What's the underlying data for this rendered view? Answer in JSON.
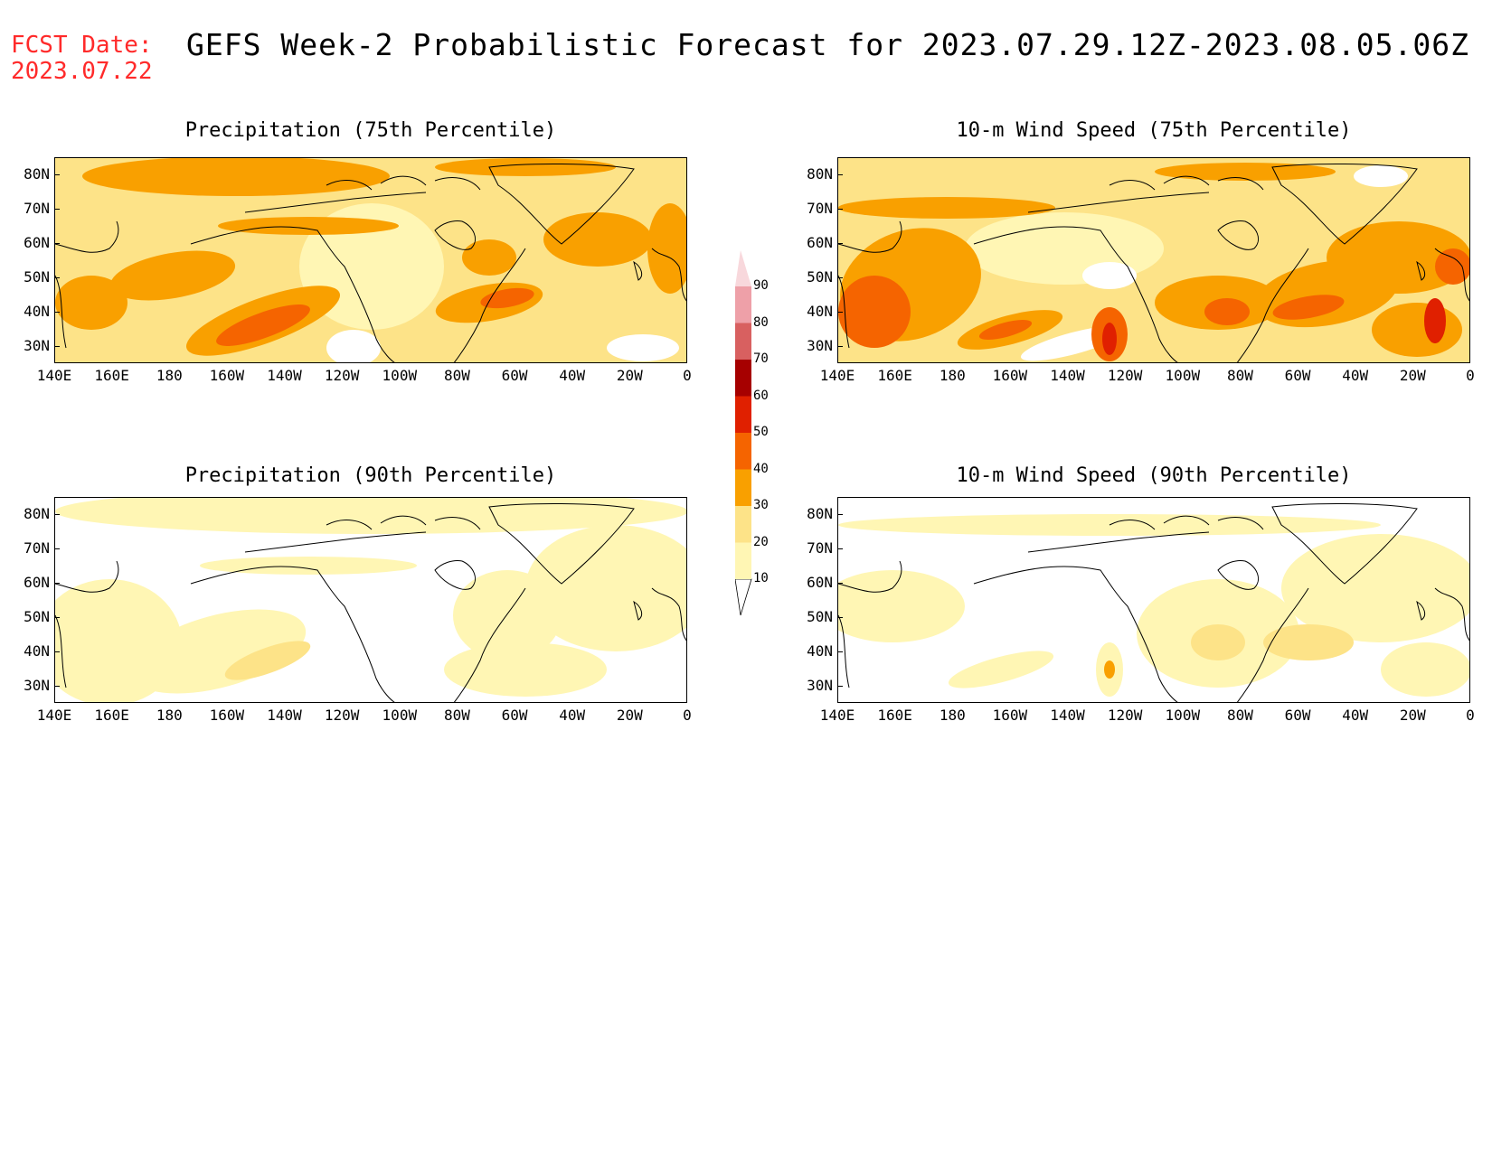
{
  "header": {
    "fcst_label": "FCST Date:",
    "fcst_date": "2023.07.22",
    "title": "GEFS Week-2 Probabilistic Forecast for 2023.07.29.12Z-2023.08.05.06Z"
  },
  "lat_ticks": [
    "80N",
    "70N",
    "60N",
    "50N",
    "40N",
    "30N"
  ],
  "lon_ticks": [
    "140E",
    "160E",
    "180",
    "160W",
    "140W",
    "120W",
    "100W",
    "80W",
    "60W",
    "40W",
    "20W",
    "0"
  ],
  "colorbar": {
    "levels": [
      "10",
      "20",
      "30",
      "40",
      "50",
      "60",
      "70",
      "80",
      "90"
    ],
    "colors": [
      "#fff6b4",
      "#fde388",
      "#f9a000",
      "#f56400",
      "#e02000",
      "#a60000",
      "#d86060",
      "#eea0a8",
      "#f8d8dc"
    ]
  },
  "panels": [
    {
      "title": "Precipitation (75th Percentile)"
    },
    {
      "title": "10-m Wind Speed (75th Percentile)"
    },
    {
      "title": "Precipitation (90th Percentile)"
    },
    {
      "title": "10-m Wind Speed (90th Percentile)"
    }
  ]
}
